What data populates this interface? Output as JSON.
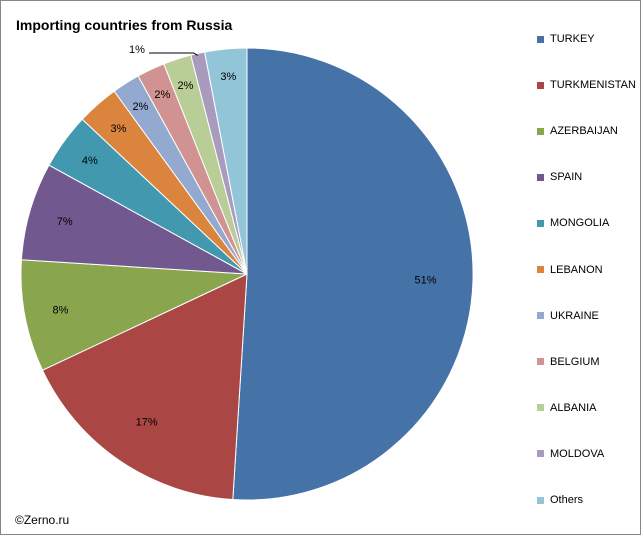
{
  "chart_data": {
    "type": "pie",
    "title": "Importing countries from Russia",
    "categories": [
      "TURKEY",
      "TURKMENISTAN",
      "AZERBAIJAN",
      "SPAIN",
      "MONGOLIA",
      "LEBANON",
      "UKRAINE",
      "BELGIUM",
      "ALBANIA",
      "MOLDOVA",
      "Others"
    ],
    "values": [
      51,
      17,
      8,
      7,
      4,
      3,
      2,
      2,
      2,
      1,
      3
    ],
    "labels": [
      "51%",
      "17%",
      "8%",
      "7%",
      "4%",
      "3%",
      "2%",
      "2%",
      "2%",
      "1%",
      "3%"
    ],
    "colors": [
      "#4572A7",
      "#AA4643",
      "#89A54E",
      "#71588F",
      "#4198AF",
      "#DB843D",
      "#93A9CF",
      "#D19392",
      "#B9CD96",
      "#A99BBD",
      "#92C5D8"
    ],
    "legend_position": "right",
    "start": "12 o'clock, clockwise"
  },
  "source": "©Zerno.ru"
}
